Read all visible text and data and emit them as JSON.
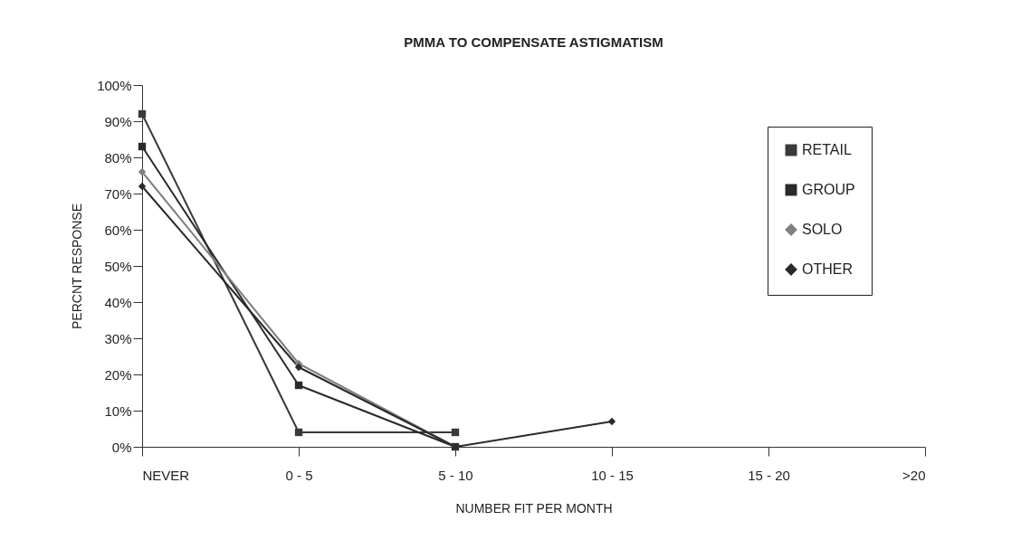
{
  "chart_data": {
    "type": "line",
    "title": "PMMA TO COMPENSATE ASTIGMATISM",
    "xlabel": "NUMBER FIT PER MONTH",
    "ylabel": "PERCNT RESPONSE",
    "categories": [
      "NEVER",
      "0 - 5",
      "5 - 10",
      "10 - 15",
      "15 - 20",
      ">20"
    ],
    "series": [
      {
        "name": "RETAIL",
        "color": "#3a3a3a",
        "marker": "square",
        "values": [
          92,
          4,
          4,
          null,
          null,
          null
        ]
      },
      {
        "name": "GROUP",
        "color": "#2a2a2a",
        "marker": "square",
        "values": [
          83,
          17,
          0,
          null,
          null,
          null
        ]
      },
      {
        "name": "SOLO",
        "color": "#808080",
        "marker": "diamond",
        "values": [
          76,
          23,
          0,
          null,
          null,
          null
        ]
      },
      {
        "name": "OTHER",
        "color": "#2a2a2a",
        "marker": "diamond",
        "values": [
          72,
          22,
          0,
          7,
          null,
          null
        ]
      }
    ],
    "ylim": [
      0,
      100
    ],
    "yticks": [
      {
        "value": 0,
        "label": "0%"
      },
      {
        "value": 10,
        "label": "10%"
      },
      {
        "value": 20,
        "label": "20%"
      },
      {
        "value": 30,
        "label": "30%"
      },
      {
        "value": 40,
        "label": "40%"
      },
      {
        "value": 50,
        "label": "50%"
      },
      {
        "value": 60,
        "label": "60%"
      },
      {
        "value": 70,
        "label": "70%"
      },
      {
        "value": 80,
        "label": "80%"
      },
      {
        "value": 90,
        "label": "90%"
      },
      {
        "value": 100,
        "label": "100%"
      }
    ],
    "grid": false,
    "legend": "top right"
  }
}
